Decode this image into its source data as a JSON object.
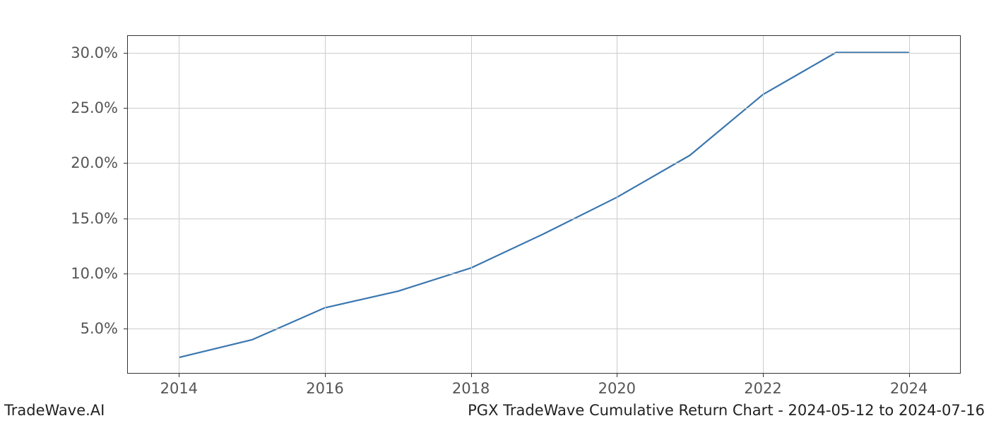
{
  "footer": {
    "left": "TradeWave.AI",
    "right": "PGX TradeWave Cumulative Return Chart - 2024-05-12 to 2024-07-16"
  },
  "chart": {
    "type": "line",
    "background_color": "#ffffff",
    "grid_color": "#cccccc",
    "axis_color": "#333333",
    "line_color": "#3a76af",
    "line_width": 2.2,
    "tick_fontsize": 21,
    "tick_color": "#555555",
    "x": {
      "min": 2013.3,
      "max": 2024.7,
      "ticks": [
        2014,
        2016,
        2018,
        2020,
        2022,
        2024
      ],
      "tick_labels": [
        "2014",
        "2016",
        "2018",
        "2020",
        "2022",
        "2024"
      ]
    },
    "y": {
      "min": 1.0,
      "max": 31.5,
      "ticks": [
        5,
        10,
        15,
        20,
        25,
        30
      ],
      "tick_labels": [
        "5.0%",
        "10.0%",
        "15.0%",
        "20.0%",
        "25.0%",
        "30.0%"
      ]
    },
    "series": [
      {
        "name": "cumulative-return",
        "x": [
          2014,
          2015,
          2016,
          2017,
          2018,
          2019,
          2020,
          2021,
          2022,
          2023,
          2024
        ],
        "y": [
          2.4,
          4.0,
          6.9,
          8.4,
          10.5,
          13.6,
          16.9,
          20.7,
          26.2,
          30.0,
          30.0
        ]
      }
    ]
  }
}
